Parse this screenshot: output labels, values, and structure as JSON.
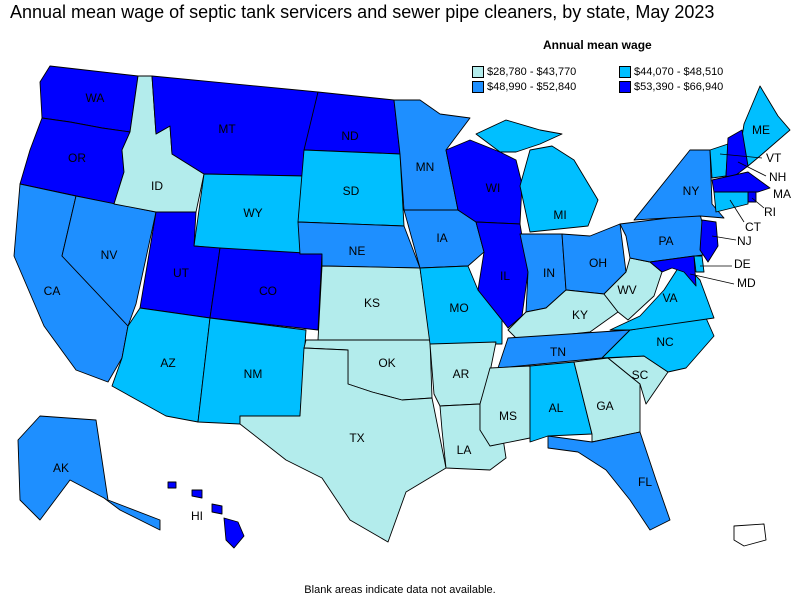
{
  "title": "Annual mean wage of septic tank servicers and sewer pipe cleaners, by state, May 2023",
  "legend": {
    "title": "Annual mean wage",
    "items": [
      {
        "label": "$28,780 - $43,770",
        "color": "#b3ecec"
      },
      {
        "label": "$44,070 - $48,510",
        "color": "#00bfff"
      },
      {
        "label": "$48,990 - $52,840",
        "color": "#1e8fff"
      },
      {
        "label": "$53,390 - $66,940",
        "color": "#0000ff"
      }
    ]
  },
  "footnote": "Blank areas indicate data not available.",
  "states": {
    "WA": {
      "label": "WA",
      "bin": 3
    },
    "OR": {
      "label": "OR",
      "bin": 3
    },
    "CA": {
      "label": "CA",
      "bin": 2
    },
    "NV": {
      "label": "NV",
      "bin": 2
    },
    "ID": {
      "label": "ID",
      "bin": 0
    },
    "MT": {
      "label": "MT",
      "bin": 3
    },
    "WY": {
      "label": "WY",
      "bin": 1
    },
    "UT": {
      "label": "UT",
      "bin": 3
    },
    "CO": {
      "label": "CO",
      "bin": 3
    },
    "AZ": {
      "label": "AZ",
      "bin": 1
    },
    "NM": {
      "label": "NM",
      "bin": 1
    },
    "ND": {
      "label": "ND",
      "bin": 3
    },
    "SD": {
      "label": "SD",
      "bin": 1
    },
    "NE": {
      "label": "NE",
      "bin": 2
    },
    "KS": {
      "label": "KS",
      "bin": 0
    },
    "OK": {
      "label": "OK",
      "bin": 0
    },
    "TX": {
      "label": "TX",
      "bin": 0
    },
    "MN": {
      "label": "MN",
      "bin": 2
    },
    "IA": {
      "label": "IA",
      "bin": 2
    },
    "MO": {
      "label": "MO",
      "bin": 1
    },
    "AR": {
      "label": "AR",
      "bin": 0
    },
    "LA": {
      "label": "LA",
      "bin": 0
    },
    "WI": {
      "label": "WI",
      "bin": 3
    },
    "IL": {
      "label": "IL",
      "bin": 3
    },
    "MI": {
      "label": "MI",
      "bin": 1
    },
    "IN": {
      "label": "IN",
      "bin": 2
    },
    "OH": {
      "label": "OH",
      "bin": 2
    },
    "KY": {
      "label": "KY",
      "bin": 0
    },
    "TN": {
      "label": "TN",
      "bin": 2
    },
    "MS": {
      "label": "MS",
      "bin": 0
    },
    "AL": {
      "label": "AL",
      "bin": 1
    },
    "GA": {
      "label": "GA",
      "bin": 0
    },
    "FL": {
      "label": "FL",
      "bin": 2
    },
    "SC": {
      "label": "SC",
      "bin": 0
    },
    "NC": {
      "label": "NC",
      "bin": 1
    },
    "VA": {
      "label": "VA",
      "bin": 1
    },
    "WV": {
      "label": "WV",
      "bin": 0
    },
    "PA": {
      "label": "PA",
      "bin": 2
    },
    "NY": {
      "label": "NY",
      "bin": 2
    },
    "ME": {
      "label": "ME",
      "bin": 1
    },
    "VT": {
      "label": "VT",
      "bin": 1
    },
    "NH": {
      "label": "NH",
      "bin": 3
    },
    "MA": {
      "label": "MA",
      "bin": 3
    },
    "RI": {
      "label": "RI",
      "bin": 3
    },
    "CT": {
      "label": "CT",
      "bin": 1
    },
    "NJ": {
      "label": "NJ",
      "bin": 3
    },
    "DE": {
      "label": "DE",
      "bin": 1
    },
    "MD": {
      "label": "MD",
      "bin": 3
    },
    "AK": {
      "label": "AK",
      "bin": 2
    },
    "HI": {
      "label": "HI",
      "bin": 3
    },
    "PR": {
      "label": "",
      "bin": null
    }
  }
}
